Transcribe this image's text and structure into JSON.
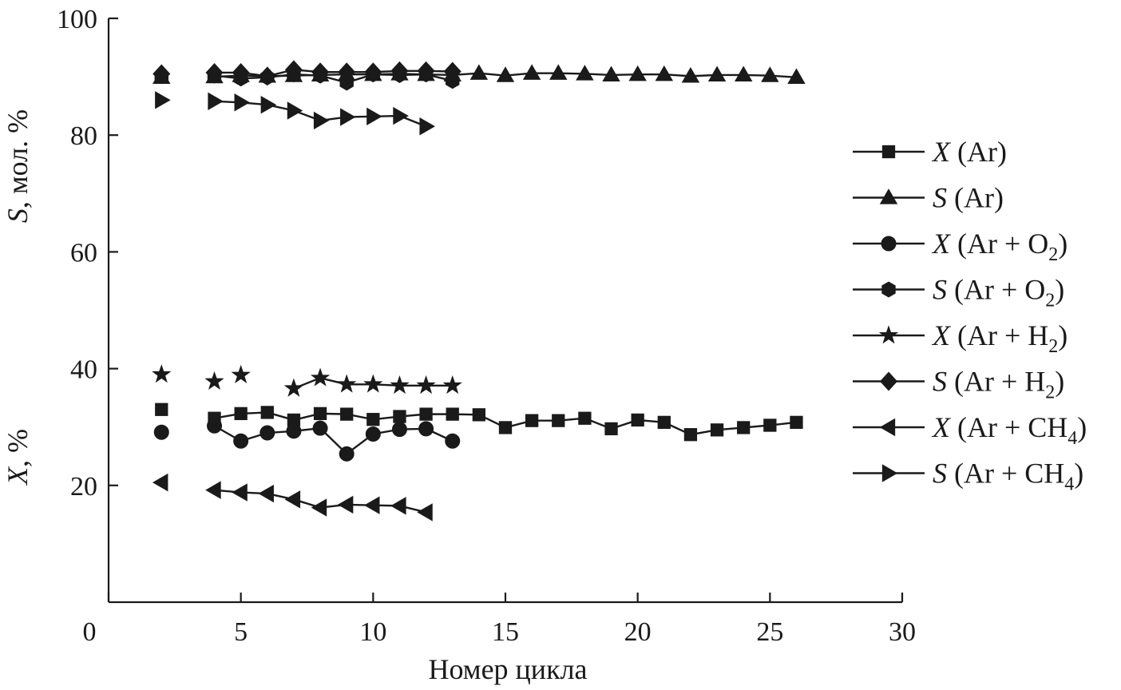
{
  "chart_data": {
    "type": "line",
    "xlabel": "Номер цикла",
    "ylabel_upper": {
      "var": "S",
      "rest": ", мол. %"
    },
    "ylabel_lower": {
      "var": "X",
      "rest": ", %"
    },
    "xlim": [
      0,
      30
    ],
    "ylim": [
      0,
      100
    ],
    "xticks": [
      "0",
      "5",
      "10",
      "15",
      "20",
      "25",
      "30"
    ],
    "yticks": [
      "20",
      "40",
      "60",
      "80",
      "100"
    ],
    "xtick_values": [
      0,
      5,
      10,
      15,
      20,
      25,
      30
    ],
    "ytick_values": [
      20,
      40,
      60,
      80,
      100
    ],
    "grid": false,
    "legend_position": "right",
    "series": [
      {
        "name": "X (Ar)",
        "label": {
          "var": "X",
          "rest": " (Ar)"
        },
        "marker": "square",
        "x": [
          2,
          4,
          5,
          6,
          7,
          8,
          9,
          10,
          11,
          12,
          13,
          14,
          15,
          16,
          17,
          18,
          19,
          20,
          21,
          22,
          23,
          24,
          25,
          26
        ],
        "y": [
          33.0,
          31.5,
          32.3,
          32.5,
          31.2,
          32.3,
          32.2,
          31.3,
          31.8,
          32.2,
          32.2,
          32.1,
          29.9,
          31.1,
          31.1,
          31.5,
          29.7,
          31.2,
          30.8,
          28.7,
          29.5,
          29.9,
          30.3,
          30.8
        ]
      },
      {
        "name": "S (Ar)",
        "label": {
          "var": "S",
          "rest": " (Ar)"
        },
        "marker": "triangle-up",
        "x": [
          2,
          4,
          5,
          6,
          7,
          8,
          9,
          10,
          11,
          12,
          13,
          14,
          15,
          16,
          17,
          18,
          19,
          20,
          21,
          22,
          23,
          24,
          25,
          26
        ],
        "y": [
          89.9,
          90.0,
          90.2,
          90.1,
          90.2,
          90.3,
          90.4,
          90.4,
          90.5,
          90.4,
          90.3,
          90.6,
          90.2,
          90.6,
          90.6,
          90.5,
          90.3,
          90.4,
          90.4,
          90.1,
          90.3,
          90.3,
          90.2,
          89.9
        ]
      },
      {
        "name": "X (Ar + O2)",
        "label": {
          "var": "X",
          "rest": " (Ar + O",
          "sub": "2",
          "after": ")"
        },
        "marker": "circle",
        "x": [
          2,
          4,
          5,
          6,
          7,
          8,
          9,
          10,
          11,
          12,
          13
        ],
        "y": [
          29.1,
          30.2,
          27.6,
          29.0,
          29.3,
          29.8,
          25.4,
          28.8,
          29.6,
          29.7,
          27.6
        ]
      },
      {
        "name": "S (Ar + O2)",
        "label": {
          "var": "S",
          "rest": " (Ar + O",
          "sub": "2",
          "after": ")"
        },
        "marker": "hexagon",
        "x": [
          2,
          4,
          5,
          6,
          7,
          8,
          9,
          10,
          11,
          12,
          13
        ],
        "y": [
          90.1,
          90.2,
          89.7,
          89.9,
          90.4,
          90.2,
          89.0,
          90.4,
          90.3,
          90.4,
          89.3
        ]
      },
      {
        "name": "X (Ar + H2)",
        "label": {
          "var": "X",
          "rest": " (Ar + H",
          "sub": "2",
          "after": ")"
        },
        "marker": "star",
        "x": [
          2,
          4,
          5,
          7,
          8,
          9,
          10,
          11,
          12,
          13
        ],
        "y": [
          39.0,
          37.8,
          38.9,
          36.6,
          38.4,
          37.3,
          37.3,
          37.1,
          37.1,
          37.1
        ],
        "breaks": [
          2,
          3
        ]
      },
      {
        "name": "S (Ar + H2)",
        "label": {
          "var": "S",
          "rest": " (Ar + H",
          "sub": "2",
          "after": ")"
        },
        "marker": "diamond",
        "x": [
          2,
          4,
          5,
          6,
          7,
          8,
          9,
          10,
          11,
          12,
          13
        ],
        "y": [
          90.5,
          90.7,
          90.7,
          90.1,
          91.2,
          90.8,
          90.8,
          90.8,
          91.0,
          91.0,
          90.9
        ]
      },
      {
        "name": "X (Ar + CH4)",
        "label": {
          "var": "X",
          "rest": " (Ar + CH",
          "sub": "4",
          "after": ")"
        },
        "marker": "triangle-left",
        "x": [
          2,
          4,
          5,
          6,
          7,
          8,
          9,
          10,
          11,
          12
        ],
        "y": [
          20.5,
          19.2,
          18.8,
          18.6,
          17.6,
          16.2,
          16.7,
          16.6,
          16.5,
          15.4
        ]
      },
      {
        "name": "S (Ar + CH4)",
        "label": {
          "var": "S",
          "rest": " (Ar + CH",
          "sub": "4",
          "after": ")"
        },
        "marker": "triangle-right",
        "x": [
          2,
          4,
          5,
          6,
          7,
          8,
          9,
          10,
          11,
          12
        ],
        "y": [
          86.0,
          85.8,
          85.6,
          85.2,
          84.2,
          82.5,
          83.1,
          83.2,
          83.3,
          81.5
        ]
      }
    ]
  }
}
